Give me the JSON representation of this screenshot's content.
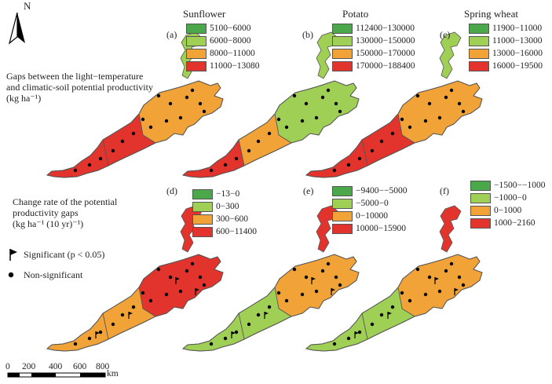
{
  "colors": {
    "green": "#4aa84a",
    "lightgreen": "#9fcf55",
    "orange": "#f2a338",
    "red": "#e2342c",
    "outline": "#555555"
  },
  "north": "N",
  "crops": [
    "Sunflower",
    "Potato",
    "Spring wheat"
  ],
  "section_top": {
    "line1": "Gaps between the light−temperature",
    "line2": "and climatic-soil potential productivity",
    "line3": "(kg ha⁻¹)"
  },
  "section_bottom": {
    "line1": "Change rate of the potential",
    "line2": "productivity gaps",
    "line3": "(kg ha⁻¹ (10 yr)⁻¹)"
  },
  "markers": {
    "significant": "Significant (p < 0.05)",
    "non_significant": "Non-significant"
  },
  "scale": {
    "ticks": [
      "0",
      "200",
      "400",
      "600",
      "800"
    ],
    "unit": "km"
  },
  "panels": [
    {
      "letter": "(a)",
      "legend": [
        "5100−6000",
        "6000−8000",
        "8000−11000",
        "11000−13080"
      ]
    },
    {
      "letter": "(b)",
      "legend": [
        "112400−130000",
        "130000−150000",
        "150000−170000",
        "170000−188400"
      ]
    },
    {
      "letter": "(c)",
      "legend": [
        "11900−11000",
        "11000−13000",
        "13000−16000",
        "16000−19500"
      ]
    },
    {
      "letter": "(d)",
      "legend": [
        "−13−0",
        "0−300",
        "300−600",
        "600−11400"
      ]
    },
    {
      "letter": "(e)",
      "legend": [
        "−9400−−5000",
        "−5000−0",
        "0−10000",
        "10000−15900"
      ]
    },
    {
      "letter": "(f)",
      "legend": [
        "−1500−−1000",
        "−1000−0",
        "0−1000",
        "1000−2160"
      ]
    }
  ]
}
